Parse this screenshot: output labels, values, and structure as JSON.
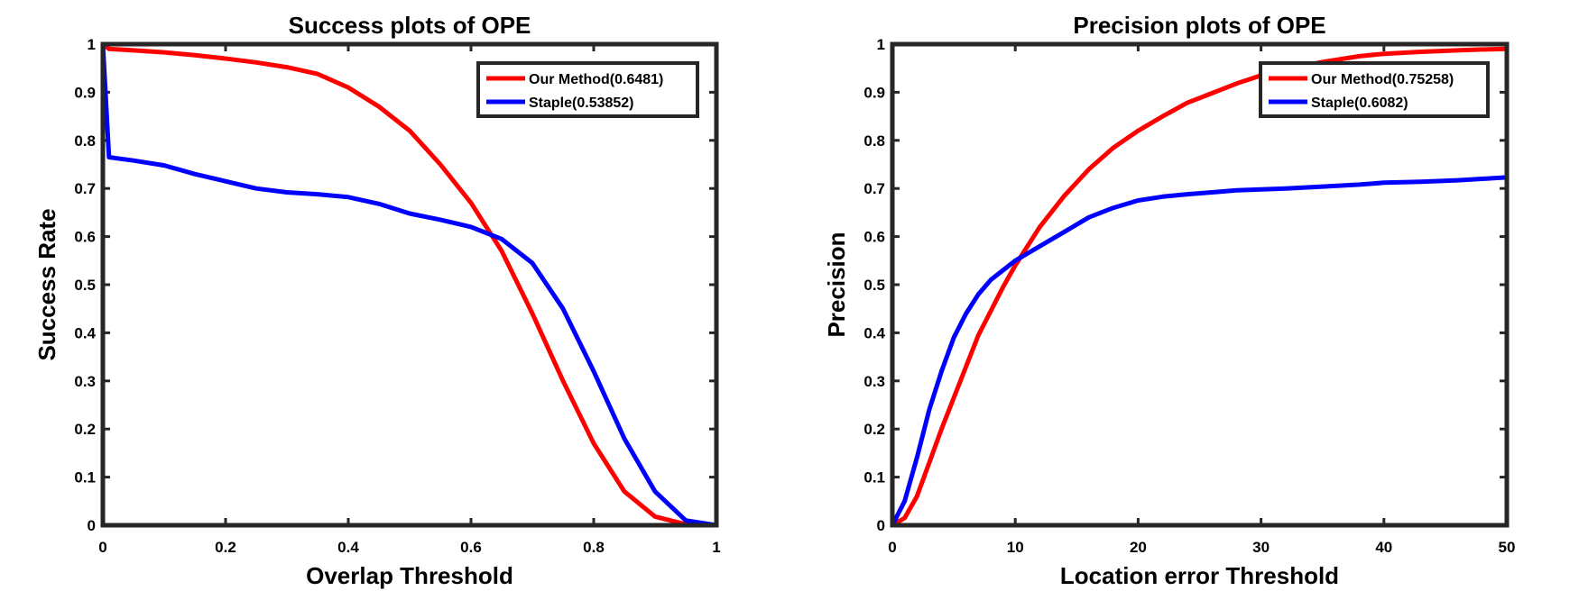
{
  "chart_data": [
    {
      "type": "line",
      "title": "Success plots of OPE",
      "xlabel": "Overlap Threshold",
      "ylabel": "Success Rate",
      "xlim": [
        0,
        1
      ],
      "ylim": [
        0,
        1
      ],
      "xticks": [
        0,
        0.2,
        0.4,
        0.6,
        0.8,
        1
      ],
      "xtick_labels": [
        "0",
        "0.2",
        "0.4",
        "0.6",
        "0.8",
        "1"
      ],
      "yticks": [
        0,
        0.1,
        0.2,
        0.3,
        0.4,
        0.5,
        0.6,
        0.7,
        0.8,
        0.9,
        1
      ],
      "ytick_labels": [
        "0",
        "0.1",
        "0.2",
        "0.3",
        "0.4",
        "0.5",
        "0.6",
        "0.7",
        "0.8",
        "0.9",
        "1"
      ],
      "legend_position": "top-right",
      "series": [
        {
          "name": "Our Method(0.6481)",
          "color": "#ff0000",
          "x": [
            0,
            0.01,
            0.05,
            0.1,
            0.15,
            0.2,
            0.25,
            0.3,
            0.35,
            0.4,
            0.45,
            0.5,
            0.55,
            0.6,
            0.65,
            0.7,
            0.75,
            0.8,
            0.85,
            0.9,
            0.95,
            1
          ],
          "y": [
            1,
            0.99,
            0.987,
            0.983,
            0.977,
            0.97,
            0.962,
            0.952,
            0.938,
            0.91,
            0.87,
            0.82,
            0.75,
            0.67,
            0.57,
            0.44,
            0.3,
            0.17,
            0.07,
            0.018,
            0.002,
            0
          ]
        },
        {
          "name": "Staple(0.53852)",
          "color": "#0000ff",
          "x": [
            0,
            0.01,
            0.05,
            0.1,
            0.15,
            0.2,
            0.25,
            0.3,
            0.35,
            0.4,
            0.45,
            0.5,
            0.55,
            0.6,
            0.65,
            0.7,
            0.75,
            0.8,
            0.85,
            0.9,
            0.95,
            1
          ],
          "y": [
            1,
            0.765,
            0.758,
            0.748,
            0.73,
            0.715,
            0.7,
            0.692,
            0.688,
            0.682,
            0.668,
            0.648,
            0.635,
            0.62,
            0.595,
            0.545,
            0.45,
            0.32,
            0.18,
            0.07,
            0.01,
            0
          ]
        }
      ]
    },
    {
      "type": "line",
      "title": "Precision plots of OPE",
      "xlabel": "Location error Threshold",
      "ylabel": "Precision",
      "xlim": [
        0,
        50
      ],
      "ylim": [
        0,
        1
      ],
      "xticks": [
        0,
        10,
        20,
        30,
        40,
        50
      ],
      "xtick_labels": [
        "0",
        "10",
        "20",
        "30",
        "40",
        "50"
      ],
      "yticks": [
        0,
        0.1,
        0.2,
        0.3,
        0.4,
        0.5,
        0.6,
        0.7,
        0.8,
        0.9,
        1
      ],
      "ytick_labels": [
        "0",
        "0.1",
        "0.2",
        "0.3",
        "0.4",
        "0.5",
        "0.6",
        "0.7",
        "0.8",
        "0.9",
        "1"
      ],
      "legend_position": "top-right",
      "series": [
        {
          "name": "Our Method(0.75258)",
          "color": "#ff0000",
          "x": [
            0,
            1,
            2,
            3,
            4,
            5,
            6,
            7,
            8,
            9,
            10,
            12,
            14,
            16,
            18,
            20,
            22,
            24,
            26,
            28,
            30,
            32,
            35,
            38,
            40,
            43,
            46,
            48,
            50
          ],
          "y": [
            0,
            0.015,
            0.06,
            0.13,
            0.2,
            0.265,
            0.33,
            0.395,
            0.445,
            0.495,
            0.54,
            0.62,
            0.685,
            0.74,
            0.785,
            0.82,
            0.85,
            0.878,
            0.898,
            0.918,
            0.935,
            0.948,
            0.963,
            0.975,
            0.98,
            0.984,
            0.987,
            0.989,
            0.99
          ]
        },
        {
          "name": "Staple(0.6082)",
          "color": "#0000ff",
          "x": [
            0,
            1,
            2,
            3,
            4,
            5,
            6,
            7,
            8,
            9,
            10,
            12,
            14,
            16,
            18,
            20,
            22,
            24,
            26,
            28,
            30,
            32,
            35,
            38,
            40,
            43,
            46,
            48,
            50
          ],
          "y": [
            0,
            0.05,
            0.14,
            0.24,
            0.32,
            0.39,
            0.44,
            0.48,
            0.51,
            0.53,
            0.55,
            0.58,
            0.61,
            0.64,
            0.66,
            0.675,
            0.683,
            0.688,
            0.692,
            0.696,
            0.698,
            0.7,
            0.704,
            0.708,
            0.712,
            0.714,
            0.717,
            0.72,
            0.723
          ]
        }
      ]
    }
  ]
}
